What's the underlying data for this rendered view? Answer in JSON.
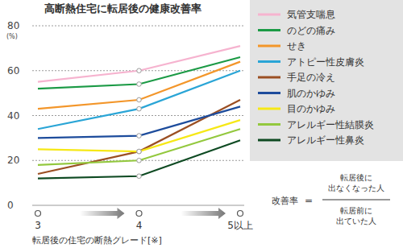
{
  "chart_data": {
    "type": "line",
    "title": "高断熱住宅に転居後の健康改善率",
    "y_label": "(%)",
    "x_label": "転居後の住宅の断熱グレード[※]",
    "categories": [
      "3",
      "4",
      "5以上"
    ],
    "ylim": [
      0,
      80
    ],
    "yticks": [
      0,
      20,
      40,
      60,
      80
    ],
    "grid": true,
    "legend": "right",
    "series": [
      {
        "name": "気管支喘息",
        "color": "#f6b3cf",
        "values": [
          55,
          60,
          71
        ]
      },
      {
        "name": "のどの痛み",
        "color": "#1b9a45",
        "values": [
          52,
          54,
          66
        ]
      },
      {
        "name": "せき",
        "color": "#f3962a",
        "values": [
          43,
          47,
          64
        ]
      },
      {
        "name": "アトピー性皮膚炎",
        "color": "#2aa5d6",
        "values": [
          34,
          43,
          60
        ]
      },
      {
        "name": "手足の冷え",
        "color": "#9b4f23",
        "values": [
          14,
          24,
          47
        ]
      },
      {
        "name": "肌のかゆみ",
        "color": "#1d4c9c",
        "values": [
          30,
          31,
          44
        ]
      },
      {
        "name": "目のかゆみ",
        "color": "#f6e816",
        "values": [
          25,
          24,
          38
        ]
      },
      {
        "name": "アレルギー性結膜炎",
        "color": "#93c83e",
        "values": [
          18,
          20,
          34
        ]
      },
      {
        "name": "アレルギー性鼻炎",
        "color": "#0e4a22",
        "values": [
          12,
          13,
          29
        ]
      }
    ],
    "formula": {
      "label": "改善率",
      "equals": "=",
      "numerator": [
        "転居後に",
        "出なくなった人"
      ],
      "denominator": [
        "転居前に",
        "出ていた人"
      ]
    }
  }
}
